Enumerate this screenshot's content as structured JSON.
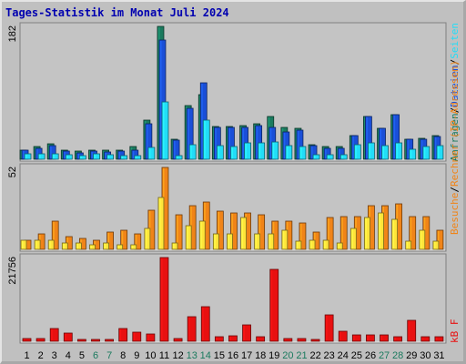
{
  "title": "Tages-Statistik im Monat Juli 2024",
  "colors": {
    "hits": "#1a7a5e",
    "files": "#1a4fd8",
    "pages": "#22ddf8",
    "visits": "#f08418",
    "sites": "#ffe53a",
    "kbytes": "#e81010",
    "weekend": "#1a7a5e",
    "weekday": "#000000",
    "panel": "#c4c4c4"
  },
  "right_labels": {
    "top": [
      {
        "text": "Anfragen",
        "color": "#1a7a5e"
      },
      {
        "text": "/",
        "color": "#000000"
      },
      {
        "text": "Dateien",
        "color": "#1a4fd8"
      },
      {
        "text": "/",
        "color": "#000000"
      },
      {
        "text": "Seiten",
        "color": "#22ddf8"
      }
    ],
    "middle": [
      {
        "text": "Besuche",
        "color": "#f08418"
      },
      {
        "text": "/",
        "color": "#000000"
      },
      {
        "text": "Rechner (IP-Adressen)",
        "color": "#f08418"
      }
    ],
    "bottom": [
      {
        "text": "kB F",
        "color": "#e81010"
      }
    ]
  },
  "chart_data": [
    {
      "type": "bar",
      "title": "Tages-Statistik im Monat Juli 2024",
      "ymax_label": "182",
      "ylim": [
        0,
        182
      ],
      "categories": [
        "1",
        "2",
        "3",
        "4",
        "5",
        "6",
        "7",
        "8",
        "9",
        "10",
        "11",
        "12",
        "13",
        "14",
        "15",
        "16",
        "17",
        "18",
        "19",
        "20",
        "21",
        "22",
        "23",
        "24",
        "25",
        "26",
        "27",
        "28",
        "29",
        "30",
        "31"
      ],
      "weekend_days": [
        "6",
        "7",
        "13",
        "14",
        "20",
        "21",
        "27",
        "28"
      ],
      "series": [
        {
          "name": "Anfragen",
          "values": [
            13,
            17,
            21,
            13,
            11,
            12,
            12,
            12,
            17,
            54,
            182,
            27,
            73,
            89,
            45,
            45,
            46,
            48,
            58,
            44,
            42,
            20,
            17,
            17,
            33,
            59,
            43,
            61,
            27,
            29,
            32
          ]
        },
        {
          "name": "Dateien",
          "values": [
            12,
            15,
            19,
            11,
            9,
            11,
            10,
            11,
            12,
            49,
            163,
            26,
            70,
            105,
            44,
            44,
            44,
            46,
            44,
            37,
            40,
            19,
            15,
            15,
            33,
            58,
            42,
            61,
            27,
            28,
            31
          ]
        },
        {
          "name": "Seiten",
          "values": [
            7,
            8,
            7,
            6,
            5,
            7,
            6,
            5,
            5,
            16,
            78,
            5,
            20,
            53,
            19,
            17,
            23,
            23,
            24,
            19,
            17,
            6,
            6,
            6,
            20,
            22,
            19,
            22,
            14,
            18,
            19
          ]
        }
      ]
    },
    {
      "type": "bar",
      "ymax_label": "52",
      "ylim": [
        0,
        52
      ],
      "categories": [
        "1",
        "2",
        "3",
        "4",
        "5",
        "6",
        "7",
        "8",
        "9",
        "10",
        "11",
        "12",
        "13",
        "14",
        "15",
        "16",
        "17",
        "18",
        "19",
        "20",
        "21",
        "22",
        "23",
        "24",
        "25",
        "26",
        "27",
        "28",
        "29",
        "30",
        "31"
      ],
      "series": [
        {
          "name": "Besuche",
          "values": [
            6,
            10,
            18,
            8,
            7,
            6,
            11,
            12,
            10,
            25,
            52,
            22,
            28,
            30,
            24,
            23,
            23,
            22,
            18,
            18,
            17,
            11,
            20,
            21,
            21,
            28,
            28,
            29,
            21,
            21,
            12
          ]
        },
        {
          "name": "Rechner (IP-Adressen)",
          "values": [
            6,
            6,
            6,
            4,
            4,
            3,
            4,
            3,
            3,
            13,
            33,
            4,
            15,
            18,
            10,
            10,
            20,
            10,
            10,
            12,
            5,
            6,
            6,
            4,
            13,
            20,
            23,
            19,
            5,
            12,
            5
          ]
        }
      ]
    },
    {
      "type": "bar",
      "ymax_label": "21756",
      "ylim": [
        0,
        21756
      ],
      "categories": [
        "1",
        "2",
        "3",
        "4",
        "5",
        "6",
        "7",
        "8",
        "9",
        "10",
        "11",
        "12",
        "13",
        "14",
        "15",
        "16",
        "17",
        "18",
        "19",
        "20",
        "21",
        "22",
        "23",
        "24",
        "25",
        "26",
        "27",
        "28",
        "29",
        "30",
        "31"
      ],
      "series": [
        {
          "name": "kB F",
          "values": [
            700,
            800,
            3300,
            2200,
            400,
            400,
            400,
            3200,
            2300,
            1900,
            21756,
            700,
            6300,
            9100,
            1200,
            1400,
            4300,
            1200,
            18800,
            800,
            800,
            500,
            6900,
            2600,
            1600,
            1600,
            1700,
            1200,
            5500,
            1300,
            1100
          ]
        }
      ]
    }
  ]
}
